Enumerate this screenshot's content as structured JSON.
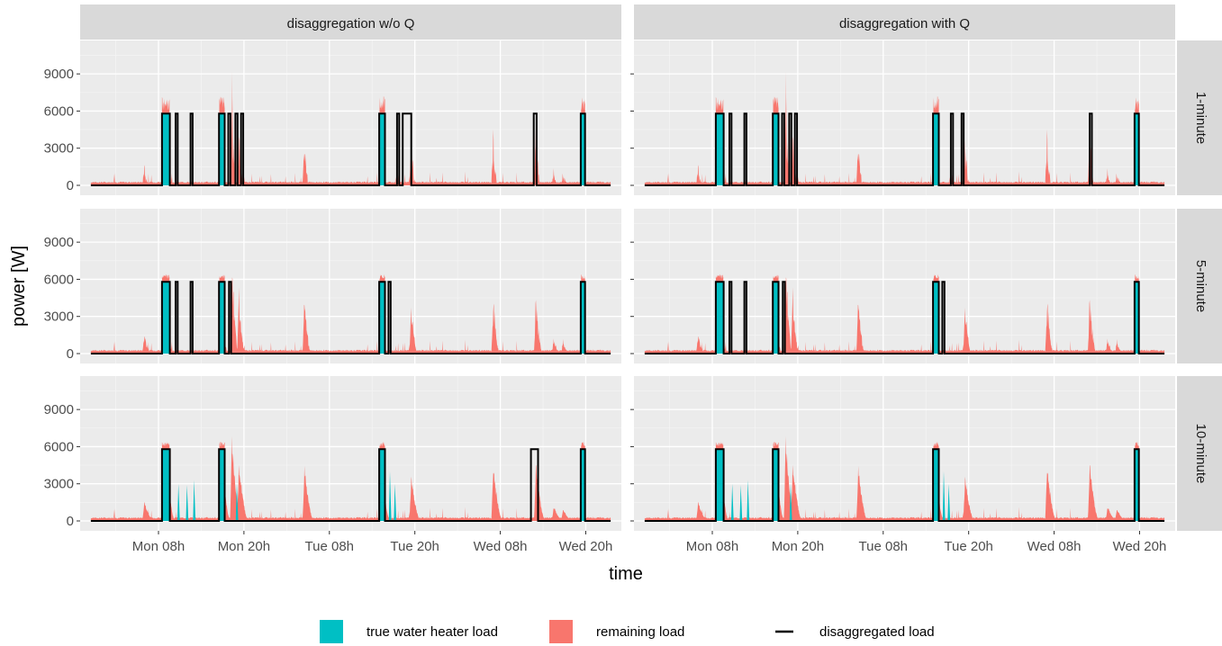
{
  "chart_data": {
    "type": "area",
    "layout": "faceted",
    "facet_columns": [
      "disaggregation w/o Q",
      "disaggregation with Q"
    ],
    "facet_rows": [
      "1-minute",
      "5-minute",
      "10-minute"
    ],
    "xlabel": "time",
    "ylabel": "power [W]",
    "x_ticks": [
      "Mon 08h",
      "Mon 20h",
      "Tue 08h",
      "Tue 20h",
      "Wed 08h",
      "Wed 20h"
    ],
    "x_tick_hours": [
      32,
      44,
      56,
      68,
      80,
      92
    ],
    "x_range_hours": [
      21,
      97
    ],
    "y_ticks": [
      0,
      3000,
      6000,
      9000
    ],
    "ylim": [
      -800,
      11700
    ],
    "grid": true,
    "legend_position": "bottom",
    "legend": [
      {
        "label": "true water heater load",
        "color": "#00BFC4",
        "kind": "fill"
      },
      {
        "label": "remaining load",
        "color": "#F8766D",
        "kind": "fill"
      },
      {
        "label": "disaggregated load",
        "color": "#000000",
        "kind": "line"
      }
    ],
    "water_heater_events": [
      {
        "start": 32.5,
        "end": 33.6,
        "value": 5800
      },
      {
        "start": 40.5,
        "end": 41.3,
        "value": 5800
      },
      {
        "start": 63.0,
        "end": 63.8,
        "value": 5800
      },
      {
        "start": 91.3,
        "end": 91.9,
        "value": 5800
      }
    ],
    "remaining_load_peaks": [
      {
        "hour": 30.0,
        "value": 2000
      },
      {
        "hour": 33.0,
        "value": 7300
      },
      {
        "hour": 40.8,
        "value": 7100
      },
      {
        "hour": 42.3,
        "value": 11000
      },
      {
        "hour": 43.3,
        "value": 6000
      },
      {
        "hour": 52.5,
        "value": 5500
      },
      {
        "hour": 63.2,
        "value": 7000
      },
      {
        "hour": 67.5,
        "value": 4500
      },
      {
        "hour": 79.0,
        "value": 5700
      },
      {
        "hour": 85.0,
        "value": 5900
      },
      {
        "hour": 87.5,
        "value": 1500
      },
      {
        "hour": 88.8,
        "value": 1300
      }
    ],
    "false_positive_events": {
      "w/o Q|1-minute": [
        [
          34.4,
          34.7,
          5800
        ],
        [
          36.5,
          36.8,
          5800
        ],
        [
          41.8,
          42.1,
          5800
        ],
        [
          42.8,
          43.1,
          5800
        ],
        [
          43.6,
          43.9,
          5800
        ],
        [
          65.5,
          65.8,
          5800
        ],
        [
          66.3,
          67.5,
          5800
        ],
        [
          84.7,
          85.1,
          5800
        ]
      ],
      "with Q|1-minute": [
        [
          34.4,
          34.7,
          5800
        ],
        [
          36.5,
          36.8,
          5800
        ],
        [
          41.8,
          42.1,
          5800
        ],
        [
          42.8,
          43.1,
          5800
        ],
        [
          43.6,
          43.9,
          5800
        ],
        [
          65.5,
          65.8,
          5800
        ],
        [
          67.0,
          67.3,
          5800
        ],
        [
          85.0,
          85.3,
          5800
        ]
      ],
      "w/o Q|5-minute": [
        [
          34.4,
          34.7,
          5800
        ],
        [
          36.5,
          36.8,
          5800
        ],
        [
          41.9,
          42.2,
          5800
        ],
        [
          64.3,
          64.6,
          5800
        ]
      ],
      "with Q|5-minute": [
        [
          34.4,
          34.7,
          5800
        ],
        [
          36.5,
          36.8,
          5800
        ],
        [
          41.9,
          42.2,
          5800
        ],
        [
          64.3,
          64.6,
          5800
        ]
      ],
      "w/o Q|10-minute": [
        [
          84.3,
          85.3,
          5800
        ]
      ],
      "with Q|10-minute": []
    }
  }
}
